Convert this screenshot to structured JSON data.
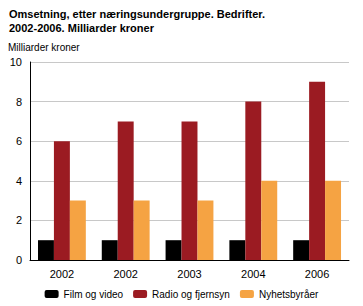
{
  "chart_data": {
    "type": "bar",
    "title": "Omsetning, etter næringsundergruppe. Bedrifter.\n2002-2006. Milliarder kroner",
    "y_label": "Milliarder kroner",
    "categories": [
      "2002",
      "2002",
      "2003",
      "2004",
      "2006"
    ],
    "series": [
      {
        "name": "Film og video",
        "color": "#000000",
        "values": [
          1,
          1,
          1,
          1,
          1
        ]
      },
      {
        "name": "Radio og fjernsyn",
        "color": "#9b1b22",
        "values": [
          6,
          7,
          7,
          8,
          9
        ]
      },
      {
        "name": "Nyhetsbyråer",
        "color": "#f5a343",
        "values": [
          3,
          3,
          3,
          4,
          4
        ]
      }
    ],
    "ylim": [
      0,
      10
    ],
    "yticks": [
      0,
      2,
      4,
      6,
      8,
      10
    ],
    "grid": true,
    "legend": "bottom"
  }
}
